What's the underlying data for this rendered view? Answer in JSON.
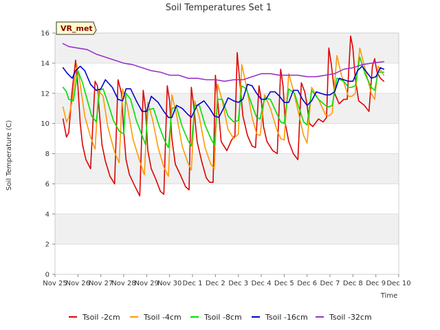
{
  "chart_data": {
    "type": "line",
    "title": "Soil Temperatures Set 1",
    "xlabel": "Time",
    "ylabel": "Soil Temperature (C)",
    "badge": "VR_met",
    "xlim": [
      0,
      15
    ],
    "ylim": [
      0,
      16
    ],
    "yticks": [
      0,
      2,
      4,
      6,
      8,
      10,
      12,
      14,
      16
    ],
    "xtick_labels": [
      "Nov 25",
      "Nov 26",
      "Nov 27",
      "Nov 28",
      "Nov 29",
      "Nov 30",
      "Dec 1",
      "Dec 2",
      "Dec 3",
      "Dec 4",
      "Dec 5",
      "Dec 6",
      "Dec 7",
      "Dec 8",
      "Dec 9",
      "Dec 10"
    ],
    "x_units": "days since Nov 25",
    "grid": true,
    "legend_position": "bottom",
    "series": [
      {
        "name": "Tsoil -2cm",
        "color": "#dd0000",
        "x": [
          0.35,
          0.5,
          0.6,
          0.75,
          0.9,
          1.0,
          1.1,
          1.2,
          1.35,
          1.55,
          1.75,
          1.85,
          1.95,
          2.05,
          2.2,
          2.4,
          2.6,
          2.75,
          2.9,
          3.0,
          3.1,
          3.25,
          3.5,
          3.7,
          3.85,
          3.95,
          4.05,
          4.2,
          4.4,
          4.6,
          4.75,
          4.9,
          5.0,
          5.1,
          5.25,
          5.5,
          5.7,
          5.85,
          5.95,
          6.05,
          6.2,
          6.4,
          6.6,
          6.75,
          6.9,
          7.0,
          7.1,
          7.25,
          7.5,
          7.7,
          7.85,
          7.95,
          8.05,
          8.2,
          8.4,
          8.6,
          8.75,
          8.9,
          9.0,
          9.1,
          9.25,
          9.5,
          9.7,
          9.85,
          9.95,
          10.05,
          10.2,
          10.4,
          10.6,
          10.75,
          10.9,
          11.0,
          11.1,
          11.25,
          11.5,
          11.7,
          11.85,
          11.95,
          12.05,
          12.2,
          12.4,
          12.6,
          12.75,
          12.9,
          13.0,
          13.1,
          13.25,
          13.5,
          13.7,
          13.85,
          13.95,
          14.05,
          14.2,
          14.35
        ],
        "values": [
          10.3,
          9.1,
          9.4,
          12.2,
          14.2,
          12.5,
          10.0,
          8.6,
          7.6,
          7.0,
          12.8,
          12.5,
          10.5,
          8.6,
          7.5,
          6.5,
          6.0,
          12.9,
          12.0,
          9.5,
          7.6,
          6.6,
          5.8,
          5.2,
          12.2,
          11.0,
          8.2,
          7.0,
          6.3,
          5.5,
          5.3,
          12.5,
          11.5,
          9.0,
          7.3,
          6.5,
          5.8,
          5.6,
          12.4,
          11.2,
          8.8,
          7.5,
          6.4,
          6.1,
          6.1,
          13.2,
          11.5,
          8.8,
          8.2,
          8.9,
          9.2,
          14.7,
          13.0,
          10.5,
          9.2,
          8.5,
          8.4,
          12.5,
          11.6,
          9.8,
          8.8,
          8.2,
          8.0,
          13.6,
          12.5,
          10.0,
          8.8,
          8.0,
          7.6,
          12.7,
          12.1,
          11.2,
          10.0,
          9.8,
          10.3,
          10.1,
          10.4,
          15.0,
          14.0,
          12.0,
          11.3,
          11.6,
          11.6,
          15.8,
          15.0,
          13.0,
          11.5,
          11.2,
          10.8,
          13.8,
          14.3,
          13.4,
          13.0,
          12.8
        ]
      },
      {
        "name": "Tsoil -4cm",
        "color": "#ff9900",
        "x": [
          0.35,
          0.5,
          0.6,
          0.75,
          0.95,
          1.1,
          1.3,
          1.55,
          1.75,
          1.9,
          2.1,
          2.3,
          2.6,
          2.8,
          2.95,
          3.15,
          3.4,
          3.7,
          3.9,
          4.05,
          4.25,
          4.5,
          4.75,
          4.95,
          5.1,
          5.3,
          5.55,
          5.8,
          5.95,
          6.1,
          6.3,
          6.55,
          6.8,
          6.95,
          7.1,
          7.3,
          7.55,
          7.8,
          8.0,
          8.15,
          8.35,
          8.6,
          8.8,
          8.95,
          9.15,
          9.4,
          9.7,
          9.85,
          10.0,
          10.2,
          10.4,
          10.7,
          10.85,
          11.0,
          11.2,
          11.5,
          11.8,
          11.95,
          12.1,
          12.3,
          12.5,
          12.8,
          12.95,
          13.1,
          13.3,
          13.55,
          13.8,
          13.95,
          14.1,
          14.35
        ],
        "values": [
          11.1,
          10.1,
          10.4,
          11.5,
          13.9,
          12.6,
          10.5,
          9.1,
          8.3,
          12.2,
          11.8,
          9.8,
          8.1,
          7.4,
          12.3,
          11.2,
          9.0,
          7.5,
          6.6,
          11.4,
          10.3,
          8.4,
          7.1,
          6.5,
          11.9,
          10.6,
          8.5,
          7.4,
          6.9,
          11.5,
          10.4,
          8.4,
          7.3,
          7.0,
          12.6,
          11.5,
          9.6,
          9.0,
          9.3,
          13.9,
          12.5,
          10.4,
          9.3,
          9.2,
          11.9,
          11.0,
          9.5,
          9.0,
          8.9,
          13.3,
          12.2,
          10.2,
          9.2,
          8.7,
          12.4,
          11.6,
          10.6,
          10.5,
          10.7,
          14.5,
          13.2,
          11.8,
          11.8,
          12.0,
          15.0,
          13.5,
          12.0,
          11.6,
          13.8,
          13.2
        ]
      },
      {
        "name": "Tsoil -8cm",
        "color": "#00dd00",
        "x": [
          0.35,
          0.5,
          0.6,
          0.8,
          1.0,
          1.2,
          1.4,
          1.6,
          1.8,
          1.95,
          2.1,
          2.3,
          2.55,
          2.8,
          3.0,
          3.1,
          3.3,
          3.55,
          3.8,
          3.95,
          4.05,
          4.3,
          4.55,
          4.8,
          4.95,
          5.1,
          5.3,
          5.55,
          5.8,
          5.95,
          6.1,
          6.3,
          6.55,
          6.8,
          6.95,
          7.1,
          7.3,
          7.55,
          7.8,
          8.0,
          8.15,
          8.35,
          8.6,
          8.8,
          8.95,
          9.15,
          9.4,
          9.7,
          9.85,
          10.0,
          10.2,
          10.45,
          10.7,
          10.85,
          11.0,
          11.2,
          11.5,
          11.8,
          11.95,
          12.1,
          12.3,
          12.6,
          12.8,
          12.95,
          13.1,
          13.3,
          13.55,
          13.8,
          13.95,
          14.1,
          14.35
        ],
        "values": [
          12.4,
          12.1,
          11.6,
          11.5,
          13.5,
          12.7,
          11.6,
          10.5,
          10.1,
          12.2,
          12.3,
          11.4,
          10.2,
          9.5,
          9.3,
          12.0,
          11.6,
          10.2,
          9.2,
          8.6,
          10.9,
          11.0,
          9.8,
          8.8,
          8.4,
          11.0,
          11.1,
          9.8,
          8.9,
          8.5,
          11.2,
          11.2,
          9.9,
          9.0,
          8.6,
          11.6,
          11.6,
          10.5,
          10.1,
          10.2,
          12.5,
          12.3,
          11.2,
          10.4,
          10.3,
          11.7,
          11.6,
          10.6,
          10.1,
          10.0,
          12.3,
          12.0,
          10.8,
          10.1,
          9.9,
          12.2,
          11.6,
          11.2,
          11.1,
          11.2,
          13.0,
          12.8,
          12.4,
          12.4,
          12.5,
          14.4,
          13.2,
          12.4,
          12.2,
          13.4,
          13.4
        ]
      },
      {
        "name": "Tsoil -16cm",
        "color": "#0000cc",
        "x": [
          0.35,
          0.55,
          0.75,
          0.9,
          1.1,
          1.3,
          1.55,
          1.8,
          2.0,
          2.2,
          2.5,
          2.75,
          2.95,
          3.1,
          3.3,
          3.55,
          3.8,
          4.0,
          4.2,
          4.5,
          4.75,
          4.95,
          5.1,
          5.3,
          5.55,
          5.8,
          5.95,
          6.2,
          6.5,
          6.75,
          6.95,
          7.15,
          7.35,
          7.55,
          7.8,
          8.0,
          8.2,
          8.4,
          8.6,
          8.8,
          9.0,
          9.2,
          9.4,
          9.6,
          9.8,
          10.0,
          10.2,
          10.4,
          10.6,
          10.8,
          11.0,
          11.2,
          11.4,
          11.6,
          11.8,
          12.0,
          12.2,
          12.4,
          12.6,
          12.8,
          13.0,
          13.2,
          13.4,
          13.6,
          13.8,
          14.0,
          14.2,
          14.35
        ],
        "values": [
          13.7,
          13.3,
          13.0,
          13.5,
          13.8,
          13.5,
          12.6,
          12.2,
          12.3,
          12.9,
          12.4,
          11.6,
          11.5,
          12.3,
          12.3,
          11.5,
          10.8,
          10.8,
          11.8,
          11.4,
          10.8,
          10.4,
          10.4,
          11.2,
          11.0,
          10.6,
          10.4,
          11.2,
          11.5,
          11.0,
          10.5,
          10.4,
          11.0,
          11.7,
          11.5,
          11.4,
          11.6,
          12.6,
          12.5,
          12.0,
          11.6,
          11.6,
          12.1,
          12.1,
          11.8,
          11.4,
          11.4,
          12.2,
          12.2,
          11.6,
          11.2,
          11.5,
          12.1,
          12.0,
          11.9,
          11.9,
          12.1,
          13.0,
          12.9,
          12.8,
          12.8,
          13.5,
          13.8,
          13.4,
          13.0,
          13.1,
          13.7,
          13.6
        ]
      },
      {
        "name": "Tsoil -32cm",
        "color": "#9933cc",
        "x": [
          0.35,
          0.6,
          1.0,
          1.4,
          1.8,
          2.2,
          2.6,
          3.0,
          3.4,
          3.8,
          4.2,
          4.6,
          5.0,
          5.4,
          5.8,
          6.2,
          6.6,
          7.0,
          7.4,
          7.8,
          8.2,
          8.6,
          9.0,
          9.4,
          9.8,
          10.2,
          10.6,
          11.0,
          11.4,
          11.8,
          12.2,
          12.6,
          13.0,
          13.4,
          13.8,
          14.35
        ],
        "values": [
          15.3,
          15.1,
          15.0,
          14.9,
          14.6,
          14.4,
          14.2,
          14.0,
          13.9,
          13.7,
          13.5,
          13.4,
          13.2,
          13.2,
          13.0,
          13.0,
          12.9,
          12.9,
          12.8,
          12.9,
          12.9,
          13.1,
          13.3,
          13.3,
          13.2,
          13.2,
          13.2,
          13.1,
          13.1,
          13.2,
          13.3,
          13.6,
          13.7,
          13.9,
          14.0,
          14.1
        ]
      }
    ]
  }
}
